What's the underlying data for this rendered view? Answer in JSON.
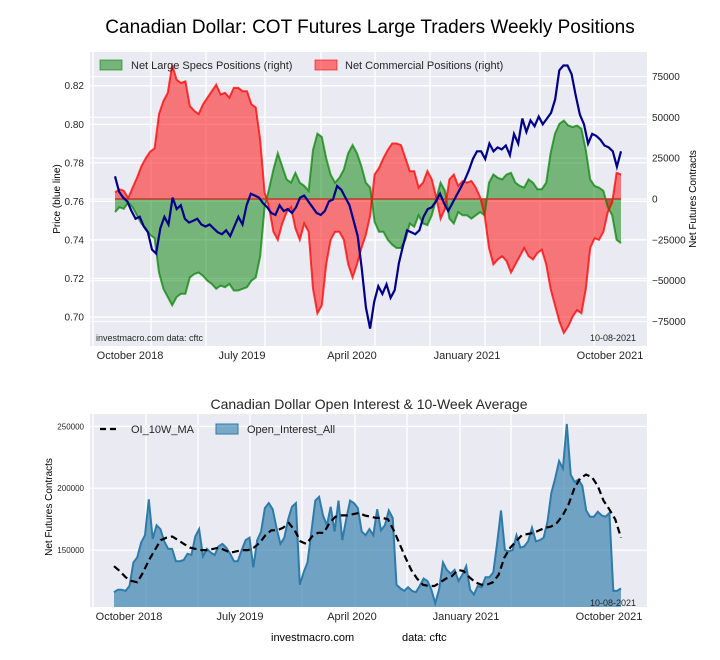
{
  "page": {
    "title": "Canadian Dollar: COT Futures Large Traders Weekly Positions"
  },
  "chart_data": [
    {
      "type": "area",
      "title": "Canadian Dollar: COT Futures Large Traders Weekly Positions",
      "ylabel_left": "Price (blue line)",
      "ylabel_right": "Net Futures Contracts",
      "ylim_left": [
        0.685,
        0.8375
      ],
      "ylim_right": [
        -90000,
        90000
      ],
      "left_ticks": [
        "0.70",
        "0.72",
        "0.74",
        "0.76",
        "0.78",
        "0.80",
        "0.82"
      ],
      "left_tick_values": [
        0.7,
        0.72,
        0.74,
        0.76,
        0.78,
        0.8,
        0.82
      ],
      "right_ticks": [
        "−75000",
        "−50000",
        "−25000",
        "0",
        "25000",
        "50000",
        "75000"
      ],
      "right_tick_values": [
        -75000,
        -50000,
        -25000,
        0,
        25000,
        50000,
        75000
      ],
      "x_ticks": [
        "October 2018",
        "July 2019",
        "April 2020",
        "January 2021",
        "October 2021"
      ],
      "x_range": [
        "2018-09-25",
        "2021-10-05"
      ],
      "grid": true,
      "legend_position": "top-left",
      "legend": [
        "Net Large Specs Positions (right)",
        "Net Commercial Positions (right)"
      ],
      "annotations": {
        "source": "investmacro.com   data: cftc",
        "date": "10-08-2021"
      },
      "series": [
        {
          "name": "Net Commercial Positions (right)",
          "color": "#ff0000",
          "values": [
            4000,
            6000,
            5000,
            500,
            7000,
            13000,
            20000,
            25000,
            29000,
            31000,
            52000,
            60000,
            65000,
            82000,
            73000,
            71000,
            72000,
            57000,
            54000,
            52000,
            58000,
            62000,
            66000,
            70000,
            64000,
            65000,
            62000,
            68000,
            68000,
            66000,
            66000,
            58000,
            56000,
            36000,
            4000,
            -5000,
            -20000,
            -25000,
            -15000,
            -8000,
            -5000,
            -18000,
            -25000,
            -15000,
            -20000,
            -55000,
            -70000,
            -65000,
            -40000,
            -25000,
            -20000,
            -20000,
            -25000,
            -40000,
            -48000,
            -40000,
            -30000,
            -22000,
            -10000,
            15000,
            19000,
            25000,
            30000,
            34000,
            34000,
            33000,
            25000,
            17000,
            17000,
            7000,
            10000,
            17000,
            12000,
            1000,
            -12000,
            -6000,
            12000,
            15000,
            8000,
            11000,
            10000,
            11000,
            7000,
            1000,
            -10000,
            -30000,
            -40000,
            -37000,
            -35000,
            -38000,
            -45000,
            -40000,
            -35000,
            -30000,
            -35000,
            -37000,
            -33000,
            -31000,
            -40000,
            -55000,
            -65000,
            -75000,
            -82000,
            -78000,
            -72000,
            -68000,
            -70000,
            -55000,
            -30000,
            -24000,
            -25000,
            -20000,
            -8000,
            -2000,
            16000,
            15000
          ],
          "note": "sampled approximately weekly-ish from chart"
        },
        {
          "name": "Net Large Specs Positions (right)",
          "color": "#008000",
          "values": [
            -8000,
            -5000,
            -6000,
            -2000,
            -5000,
            -10000,
            -15000,
            -18000,
            -22000,
            -24000,
            -45000,
            -55000,
            -60000,
            -65000,
            -60000,
            -58000,
            -58000,
            -48000,
            -46000,
            -45000,
            -47000,
            -50000,
            -52000,
            -55000,
            -53000,
            -54000,
            -52000,
            -56000,
            -56000,
            -55000,
            -54000,
            -50000,
            -48000,
            -35000,
            -5000,
            6000,
            18000,
            28000,
            20000,
            12000,
            10000,
            16000,
            10000,
            8000,
            5000,
            30000,
            40000,
            38000,
            25000,
            15000,
            10000,
            13000,
            18000,
            28000,
            33000,
            28000,
            20000,
            10000,
            7000,
            -14000,
            -20000,
            -20000,
            -25000,
            -28000,
            -30000,
            -30000,
            -25000,
            -15000,
            -17000,
            -10000,
            -15000,
            -16000,
            -10000,
            0,
            10000,
            5000,
            -12000,
            -15000,
            -8000,
            -10000,
            -10000,
            -12000,
            -10000,
            -8000,
            -10000,
            10000,
            15000,
            13000,
            12000,
            15000,
            16000,
            10000,
            8000,
            7000,
            12000,
            10000,
            6000,
            6000,
            10000,
            28000,
            40000,
            46000,
            48000,
            45000,
            44000,
            45000,
            43000,
            30000,
            12000,
            8000,
            7000,
            5000,
            -5000,
            -10000,
            -25000,
            -27000
          ]
        },
        {
          "name": "Price (blue line)",
          "color": "#00008b",
          "axis": "left",
          "values": [
            0.773,
            0.765,
            0.762,
            0.76,
            0.755,
            0.751,
            0.752,
            0.747,
            0.744,
            0.735,
            0.733,
            0.746,
            0.752,
            0.748,
            0.762,
            0.756,
            0.758,
            0.751,
            0.749,
            0.75,
            0.751,
            0.748,
            0.747,
            0.748,
            0.746,
            0.744,
            0.743,
            0.745,
            0.742,
            0.747,
            0.752,
            0.748,
            0.758,
            0.764,
            0.763,
            0.762,
            0.759,
            0.757,
            0.754,
            0.753,
            0.758,
            0.755,
            0.756,
            0.754,
            0.757,
            0.762,
            0.763,
            0.76,
            0.757,
            0.754,
            0.753,
            0.755,
            0.76,
            0.761,
            0.768,
            0.766,
            0.762,
            0.758,
            0.75,
            0.742,
            0.725,
            0.705,
            0.694,
            0.708,
            0.716,
            0.712,
            0.717,
            0.71,
            0.714,
            0.728,
            0.737,
            0.745,
            0.744,
            0.743,
            0.745,
            0.752,
            0.756,
            0.757,
            0.76,
            0.764,
            0.759,
            0.755,
            0.759,
            0.763,
            0.767,
            0.771,
            0.776,
            0.782,
            0.786,
            0.786,
            0.782,
            0.79,
            0.786,
            0.788,
            0.787,
            0.789,
            0.784,
            0.795,
            0.79,
            0.803,
            0.796,
            0.802,
            0.799,
            0.804,
            0.8,
            0.803,
            0.806,
            0.813,
            0.828,
            0.832,
            0.832,
            0.826,
            0.815,
            0.805,
            0.8,
            0.79,
            0.795,
            0.794,
            0.792,
            0.789,
            0.788,
            0.786,
            0.778,
            0.786
          ]
        }
      ]
    },
    {
      "type": "area",
      "title": "Canadian Dollar Open Interest & 10-Week Average",
      "ylabel": "Net Futures Contracts",
      "ylim": [
        104000,
        260000
      ],
      "y_ticks": [
        "150000",
        "200000",
        "250000"
      ],
      "y_tick_values": [
        150000,
        200000,
        250000
      ],
      "x_ticks": [
        "October 2018",
        "July 2019",
        "April 2020",
        "January 2021",
        "October 2021"
      ],
      "grid": true,
      "legend_position": "top-left",
      "legend": [
        "OI_10W_MA",
        "Open_Interest_All"
      ],
      "annotations": {
        "date": "10-08-2021"
      },
      "series": [
        {
          "name": "Open_Interest_All",
          "color": "#2e7bab",
          "values": [
            116000,
            118000,
            118000,
            117000,
            121000,
            140000,
            144000,
            156000,
            162000,
            191000,
            159000,
            170000,
            167000,
            157000,
            151000,
            151000,
            141000,
            141000,
            142000,
            147000,
            146000,
            161000,
            167000,
            145000,
            151000,
            148000,
            146000,
            153000,
            155000,
            152000,
            147000,
            141000,
            141000,
            150000,
            158000,
            160000,
            136000,
            158000,
            165000,
            184000,
            188000,
            183000,
            168000,
            155000,
            160000,
            175000,
            185000,
            188000,
            122000,
            132000,
            140000,
            165000,
            190000,
            193000,
            178000,
            170000,
            185000,
            165000,
            190000,
            158000,
            175000,
            190000,
            188000,
            184000,
            165000,
            162000,
            167000,
            162000,
            183000,
            166000,
            170000,
            182000,
            176000,
            122000,
            119000,
            117000,
            120000,
            117000,
            116000,
            121000,
            127000,
            125000,
            118000,
            107000,
            118000,
            140000,
            134000,
            131000,
            134000,
            125000,
            130000,
            137000,
            118000,
            114000,
            121000,
            120000,
            128000,
            128000,
            132000,
            156000,
            182000,
            150000,
            149000,
            150000,
            162000,
            152000,
            153000,
            157000,
            168000,
            157000,
            158000,
            160000,
            173000,
            196000,
            208000,
            222000,
            216000,
            252000,
            211000,
            205000,
            207000,
            202000,
            182000,
            177000,
            177000,
            181000,
            178000,
            177000,
            180000,
            117000,
            117000,
            119000
          ]
        },
        {
          "name": "OI_10W_MA",
          "color": "#000000",
          "style": "dashed",
          "values": [
            137000,
            133000,
            128000,
            125000,
            124000,
            132000,
            142000,
            150000,
            158000,
            160000,
            161000,
            158000,
            155000,
            152000,
            151000,
            150000,
            150000,
            151000,
            152000,
            150000,
            148000,
            149000,
            150000,
            150000,
            152000,
            156000,
            162000,
            166000,
            166000,
            168000,
            172000,
            166000,
            157000,
            155000,
            161000,
            164000,
            164000,
            172000,
            177000,
            178000,
            178000,
            179000,
            180000,
            178000,
            177000,
            176000,
            176000,
            175000,
            166000,
            155000,
            144000,
            134000,
            127000,
            122000,
            121000,
            121000,
            124000,
            127000,
            129000,
            134000,
            133000,
            128000,
            124000,
            122000,
            122000,
            124000,
            130000,
            144000,
            152000,
            157000,
            162000,
            163000,
            164000,
            166000,
            168000,
            169000,
            172000,
            178000,
            187000,
            200000,
            208000,
            211000,
            209000,
            202000,
            190000,
            183000,
            175000,
            160000
          ]
        }
      ]
    }
  ],
  "footer": {
    "source": "investmacro.com",
    "data": "data: cftc"
  }
}
